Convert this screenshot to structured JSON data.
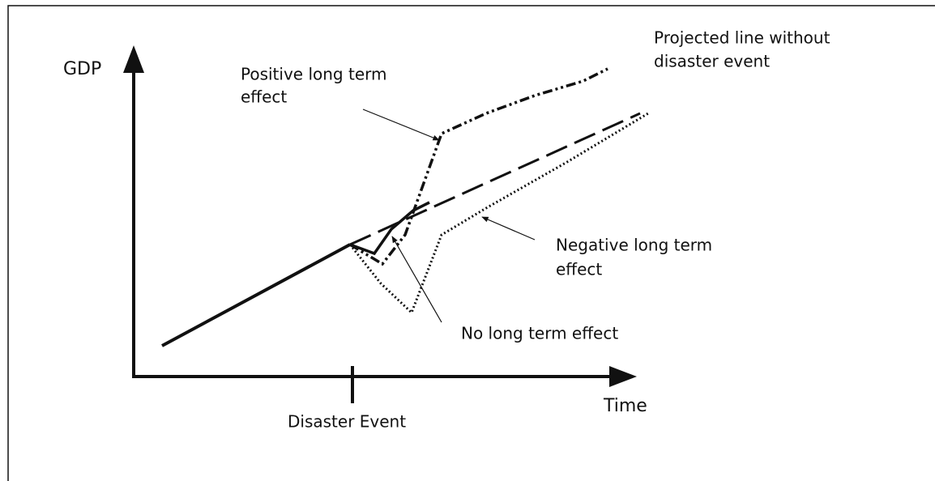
{
  "axes": {
    "y_label": "GDP",
    "x_label": "Time",
    "event_label": "Disaster Event"
  },
  "labels": {
    "positive": [
      "Positive long term",
      "effect"
    ],
    "projected": [
      "Projected line without",
      "disaster event"
    ],
    "negative": [
      "Negative long term",
      "effect"
    ],
    "none": [
      "No long term effect"
    ]
  }
}
